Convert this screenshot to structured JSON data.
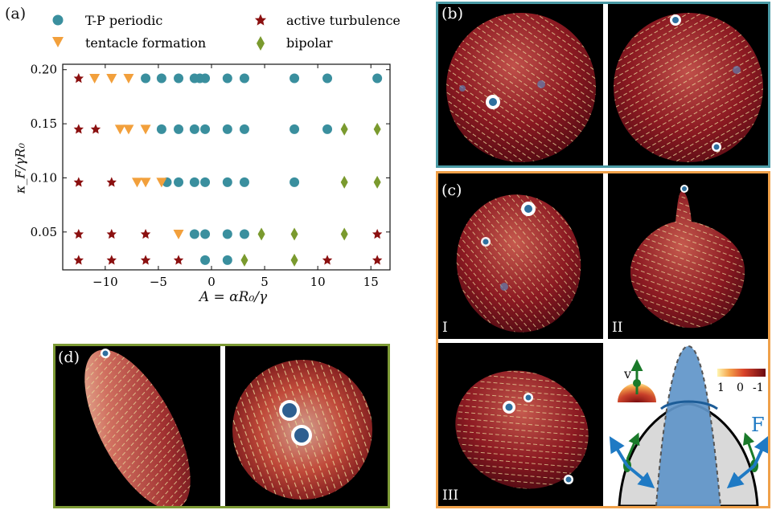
{
  "panels": {
    "a": "(a)",
    "b": "(b)",
    "c": "(c)",
    "d": "(d)",
    "c_sub": [
      "I",
      "II",
      "III"
    ]
  },
  "legend": [
    {
      "label": "T-P periodic",
      "marker": "circle",
      "color": "#3a8f9e"
    },
    {
      "label": "active turbulence",
      "marker": "star",
      "color": "#8b1010"
    },
    {
      "label": "tentacle formation",
      "marker": "triangle-down",
      "color": "#f2a03c"
    },
    {
      "label": "bipolar",
      "marker": "diamond",
      "color": "#7a9a2e"
    }
  ],
  "schematic": {
    "velocity_label": "v",
    "force_label": "F",
    "colorbar_ticks": [
      "1",
      "0",
      "-1"
    ]
  },
  "colors": {
    "periodic_frame": "#4a9aa5",
    "tentacle_frame": "#f0a14a",
    "bipolar_frame": "#7d9a35",
    "force_arrow": "#1f7ac4"
  },
  "chart_data": {
    "type": "scatter",
    "xlabel": "A = αR₀/γ",
    "ylabel": "κ_F/γR₀",
    "xlim": [
      -14,
      16.8
    ],
    "ylim": [
      0.015,
      0.205
    ],
    "xticks": [
      -10,
      -5,
      0,
      5,
      10,
      15
    ],
    "yticks": [
      0.05,
      0.1,
      0.15,
      0.2
    ],
    "xtick_labels": [
      "−10",
      "−5",
      "0",
      "5",
      "10",
      "15"
    ],
    "ytick_labels": [
      "0.05",
      "0.10",
      "0.15",
      "0.20"
    ],
    "grid": false,
    "legend_position": "top, outside plot",
    "series": [
      {
        "name": "T-P periodic",
        "points": [
          [
            -6.2,
            0.192
          ],
          [
            -4.7,
            0.192
          ],
          [
            -3.1,
            0.192
          ],
          [
            -1.6,
            0.192
          ],
          [
            -1.1,
            0.192
          ],
          [
            -0.6,
            0.192
          ],
          [
            1.5,
            0.192
          ],
          [
            3.1,
            0.192
          ],
          [
            7.8,
            0.192
          ],
          [
            10.9,
            0.192
          ],
          [
            15.6,
            0.192
          ],
          [
            -4.7,
            0.145
          ],
          [
            -3.1,
            0.145
          ],
          [
            -1.6,
            0.145
          ],
          [
            -0.6,
            0.145
          ],
          [
            1.5,
            0.145
          ],
          [
            3.1,
            0.145
          ],
          [
            7.8,
            0.145
          ],
          [
            10.9,
            0.145
          ],
          [
            -4.2,
            0.096
          ],
          [
            -3.1,
            0.096
          ],
          [
            -1.6,
            0.096
          ],
          [
            -0.6,
            0.096
          ],
          [
            1.5,
            0.096
          ],
          [
            3.1,
            0.096
          ],
          [
            7.8,
            0.096
          ],
          [
            -1.6,
            0.048
          ],
          [
            -0.6,
            0.048
          ],
          [
            1.5,
            0.048
          ],
          [
            3.1,
            0.048
          ],
          [
            -0.6,
            0.024
          ],
          [
            1.5,
            0.024
          ]
        ]
      },
      {
        "name": "active turbulence",
        "points": [
          [
            -12.5,
            0.192
          ],
          [
            -12.5,
            0.145
          ],
          [
            -10.9,
            0.145
          ],
          [
            -12.5,
            0.096
          ],
          [
            -9.4,
            0.096
          ],
          [
            -12.5,
            0.048
          ],
          [
            -9.4,
            0.048
          ],
          [
            -6.2,
            0.048
          ],
          [
            15.6,
            0.048
          ],
          [
            -12.5,
            0.024
          ],
          [
            -9.4,
            0.024
          ],
          [
            -6.2,
            0.024
          ],
          [
            -3.1,
            0.024
          ],
          [
            10.9,
            0.024
          ],
          [
            15.6,
            0.024
          ]
        ]
      },
      {
        "name": "tentacle formation",
        "points": [
          [
            -11.0,
            0.192
          ],
          [
            -9.4,
            0.192
          ],
          [
            -7.8,
            0.192
          ],
          [
            -8.6,
            0.145
          ],
          [
            -7.8,
            0.145
          ],
          [
            -6.2,
            0.145
          ],
          [
            -7.0,
            0.096
          ],
          [
            -6.2,
            0.096
          ],
          [
            -4.7,
            0.096
          ],
          [
            -3.1,
            0.048
          ]
        ]
      },
      {
        "name": "bipolar",
        "points": [
          [
            12.5,
            0.145
          ],
          [
            15.6,
            0.145
          ],
          [
            12.5,
            0.096
          ],
          [
            15.6,
            0.096
          ],
          [
            4.7,
            0.048
          ],
          [
            7.8,
            0.048
          ],
          [
            12.5,
            0.048
          ],
          [
            3.1,
            0.024
          ],
          [
            7.8,
            0.024
          ]
        ]
      }
    ]
  }
}
